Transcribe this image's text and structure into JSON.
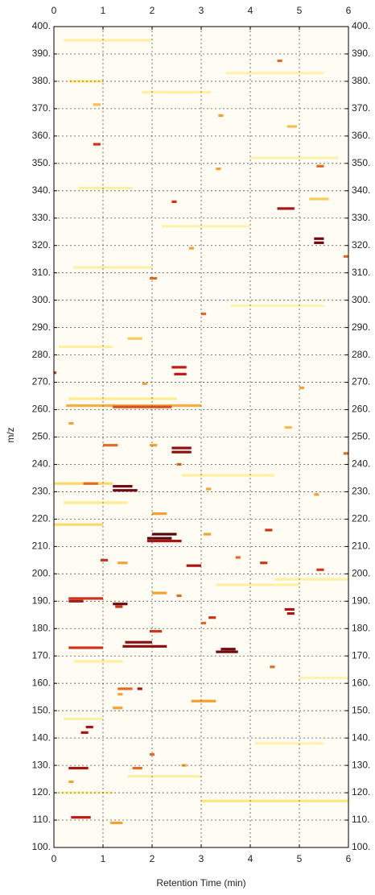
{
  "chart_data": {
    "type": "heatmap",
    "xlabel": "Retention Time (min)",
    "ylabel": "m/z",
    "xlim": [
      0,
      6
    ],
    "ylim": [
      100,
      400
    ],
    "xticks": [
      0,
      1,
      2,
      3,
      4,
      5,
      6
    ],
    "yticks": [
      {
        "value": 100,
        "label": "100."
      },
      {
        "value": 110,
        "label": "110."
      },
      {
        "value": 120,
        "label": "120."
      },
      {
        "value": 130,
        "label": "130."
      },
      {
        "value": 140,
        "label": "140."
      },
      {
        "value": 150,
        "label": "150."
      },
      {
        "value": 160,
        "label": "160."
      },
      {
        "value": 170,
        "label": "170."
      },
      {
        "value": 180,
        "label": "180."
      },
      {
        "value": 190,
        "label": "190."
      },
      {
        "value": 200,
        "label": "200."
      },
      {
        "value": 210,
        "label": "210."
      },
      {
        "value": 220,
        "label": "220."
      },
      {
        "value": 230,
        "label": "230."
      },
      {
        "value": 240,
        "label": "240."
      },
      {
        "value": 250,
        "label": "250."
      },
      {
        "value": 260,
        "label": "260."
      },
      {
        "value": 270,
        "label": "270."
      },
      {
        "value": 280,
        "label": "280."
      },
      {
        "value": 290,
        "label": "290."
      },
      {
        "value": 300,
        "label": "300."
      },
      {
        "value": 310,
        "label": "310."
      },
      {
        "value": 320,
        "label": "320."
      },
      {
        "value": 330,
        "label": "330."
      },
      {
        "value": 340,
        "label": "340."
      },
      {
        "value": 350,
        "label": "350."
      },
      {
        "value": 360,
        "label": "360."
      },
      {
        "value": 370,
        "label": "370."
      },
      {
        "value": 380,
        "label": "380."
      },
      {
        "value": 390,
        "label": "390."
      },
      {
        "value": 400,
        "label": "400."
      }
    ],
    "grid": true,
    "clim": [
      0,
      1
    ],
    "colormap": [
      "#fffbe0",
      "#ffe77a",
      "#f5a030",
      "#c41a12",
      "#3a0010"
    ],
    "peaks": {
      "mz": [
        387.5,
        380,
        371.5,
        367.5,
        363.5,
        357,
        349,
        348,
        337,
        336,
        333.5,
        322.5,
        321,
        319,
        316,
        308,
        295,
        286,
        275.5,
        273,
        273.5,
        269.5,
        268,
        261.5,
        261,
        255,
        253.5,
        247,
        247,
        246,
        244.5,
        240,
        244,
        233,
        233,
        232,
        230.5,
        231,
        229,
        222,
        218,
        216,
        214.5,
        213,
        212,
        214.5,
        206,
        205,
        204,
        204,
        203,
        201.5,
        193,
        192,
        191,
        190,
        189,
        188,
        187,
        185.5,
        184,
        182,
        179,
        175,
        173.5,
        173,
        172.5,
        171.5,
        166,
        158,
        158,
        156,
        153.5,
        151,
        144,
        142,
        134,
        130,
        129,
        129,
        124,
        117,
        111,
        109,
        395,
        383,
        376,
        352,
        341,
        327,
        312,
        298,
        283,
        264,
        236,
        226,
        198,
        196,
        168,
        162,
        147,
        138,
        126,
        120
      ],
      "rt_start": [
        4.55,
        0.3,
        0.8,
        3.35,
        4.75,
        0.8,
        5.35,
        3.3,
        5.2,
        2.4,
        4.55,
        5.3,
        5.3,
        2.75,
        5.9,
        1.95,
        3.0,
        1.5,
        2.4,
        2.45,
        0.0,
        1.8,
        5.0,
        0.25,
        1.2,
        0.3,
        4.7,
        1.0,
        1.95,
        2.4,
        2.4,
        2.5,
        5.9,
        0.0,
        0.6,
        1.2,
        1.2,
        3.1,
        5.3,
        2.0,
        0.0,
        4.3,
        2.0,
        1.9,
        1.9,
        3.05,
        3.7,
        0.95,
        1.3,
        4.2,
        2.7,
        5.35,
        2.0,
        2.5,
        0.3,
        0.3,
        1.2,
        1.25,
        4.7,
        4.75,
        3.15,
        3.0,
        1.95,
        1.45,
        1.4,
        0.3,
        3.4,
        3.3,
        4.4,
        1.3,
        1.7,
        1.3,
        2.8,
        1.2,
        0.65,
        0.55,
        1.95,
        2.6,
        0.3,
        1.6,
        0.3,
        3.0,
        0.35,
        1.15,
        0.2,
        3.5,
        1.8,
        4.0,
        0.5,
        2.2,
        0.4,
        3.6,
        0.1,
        0.3,
        2.6,
        0.2,
        4.5,
        3.3,
        0.4,
        5.0,
        0.2,
        4.1,
        1.5,
        0.1
      ],
      "rt_end": [
        4.65,
        1.0,
        0.95,
        3.45,
        4.95,
        0.95,
        5.5,
        3.4,
        5.6,
        2.5,
        4.9,
        5.5,
        5.5,
        2.85,
        6.0,
        2.1,
        3.1,
        1.8,
        2.7,
        2.7,
        0.05,
        1.9,
        5.1,
        3.0,
        2.4,
        0.4,
        4.85,
        1.3,
        2.1,
        2.8,
        2.8,
        2.6,
        6.0,
        1.2,
        0.9,
        1.6,
        1.7,
        3.2,
        5.4,
        2.3,
        1.0,
        4.45,
        2.5,
        2.4,
        2.6,
        3.2,
        3.8,
        1.1,
        1.5,
        4.35,
        3.0,
        5.5,
        2.3,
        2.6,
        1.0,
        0.6,
        1.5,
        1.4,
        4.9,
        4.9,
        3.3,
        3.1,
        2.2,
        2.0,
        2.3,
        1.0,
        3.7,
        3.75,
        4.5,
        1.6,
        1.8,
        1.4,
        3.3,
        1.4,
        0.8,
        0.7,
        2.05,
        2.7,
        0.7,
        1.8,
        0.4,
        6.0,
        0.75,
        1.4,
        2.0,
        5.5,
        3.2,
        5.8,
        1.6,
        4.0,
        2.0,
        5.5,
        1.2,
        2.5,
        4.5,
        1.5,
        6.0,
        5.0,
        1.4,
        6.0,
        1.0,
        5.5,
        3.0,
        1.2
      ],
      "intensity": [
        0.6,
        0.25,
        0.4,
        0.5,
        0.4,
        0.7,
        0.6,
        0.5,
        0.35,
        0.7,
        0.8,
        0.9,
        0.9,
        0.5,
        0.6,
        0.6,
        0.6,
        0.35,
        0.75,
        0.75,
        0.7,
        0.5,
        0.5,
        0.45,
        0.65,
        0.5,
        0.4,
        0.6,
        0.5,
        0.85,
        0.85,
        0.6,
        0.6,
        0.3,
        0.6,
        0.9,
        0.9,
        0.5,
        0.5,
        0.5,
        0.3,
        0.7,
        0.95,
        0.95,
        0.8,
        0.5,
        0.6,
        0.7,
        0.5,
        0.7,
        0.8,
        0.7,
        0.5,
        0.6,
        0.7,
        0.8,
        0.9,
        0.7,
        0.8,
        0.8,
        0.7,
        0.6,
        0.7,
        0.85,
        0.85,
        0.7,
        0.9,
        0.9,
        0.6,
        0.6,
        0.8,
        0.5,
        0.5,
        0.5,
        0.8,
        0.8,
        0.6,
        0.5,
        0.8,
        0.6,
        0.5,
        0.25,
        0.75,
        0.5,
        0.15,
        0.12,
        0.15,
        0.12,
        0.15,
        0.12,
        0.15,
        0.12,
        0.15,
        0.2,
        0.15,
        0.2,
        0.15,
        0.15,
        0.15,
        0.12,
        0.15,
        0.12,
        0.15,
        0.15
      ]
    }
  }
}
